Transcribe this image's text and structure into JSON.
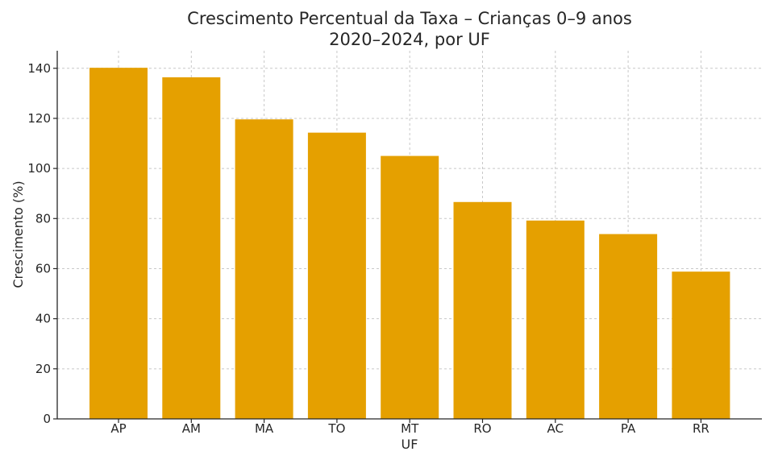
{
  "chart_data": {
    "type": "bar",
    "title": "Crescimento Percentual da Taxa – Crianças 0–9 anos",
    "subtitle": "2020–2024, por UF",
    "xlabel": "UF",
    "ylabel": "Crescimento (%)",
    "categories": [
      "AP",
      "AM",
      "MA",
      "TO",
      "MT",
      "RO",
      "AC",
      "PA",
      "RR"
    ],
    "values": [
      140.2,
      136.4,
      119.6,
      114.3,
      105.0,
      86.6,
      79.2,
      73.8,
      58.8
    ],
    "ylim": [
      0,
      147
    ],
    "yticks": [
      0,
      20,
      40,
      60,
      80,
      100,
      120,
      140
    ],
    "grid": true,
    "bar_color": "#e5a000"
  }
}
